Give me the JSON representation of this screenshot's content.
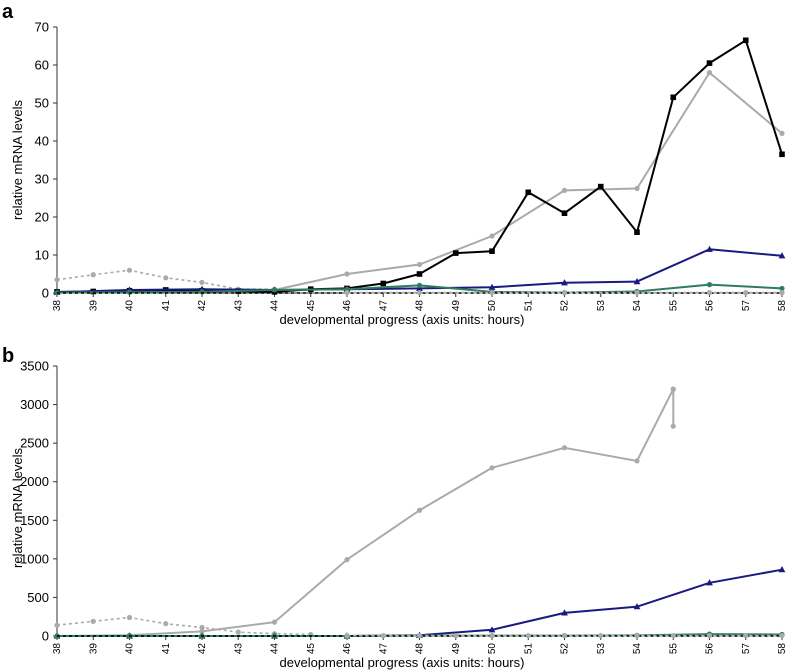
{
  "chart_data": [
    {
      "panel": "a",
      "type": "line",
      "xlabel": "developmental progress (axis units: hours)",
      "ylabel": "relative mRNA levels",
      "ylim": [
        0,
        70
      ],
      "yticks": [
        0,
        10,
        20,
        30,
        40,
        50,
        60,
        70
      ],
      "xticks": [
        38,
        39,
        40,
        41,
        42,
        43,
        44,
        45,
        46,
        47,
        48,
        49,
        50,
        51,
        52,
        53,
        54,
        55,
        56,
        57,
        58
      ],
      "grid": false,
      "series": [
        {
          "color": "#aaaaaa",
          "dash": true,
          "marker": "circle",
          "x": [
            38,
            39,
            40,
            41,
            42,
            43,
            44
          ],
          "y": [
            3.5,
            4.8,
            6.0,
            4.0,
            2.8,
            1.0,
            1.0
          ]
        },
        {
          "color": "#aaaaaa",
          "dash": false,
          "marker": "circle",
          "x": [
            38,
            40,
            42,
            44,
            46,
            48,
            50,
            52,
            54,
            56,
            58
          ],
          "y": [
            0.2,
            0.3,
            0.5,
            0.8,
            5.0,
            7.5,
            15.0,
            27.0,
            27.5,
            58.0,
            42.0
          ]
        },
        {
          "color": "#000000",
          "dash": false,
          "marker": "square",
          "x": [
            38,
            39,
            40,
            41,
            42,
            43,
            44,
            45,
            46,
            47,
            48,
            49,
            50,
            51,
            52,
            53,
            54,
            55,
            56,
            57,
            58
          ],
          "y": [
            0.3,
            0.4,
            0.6,
            0.8,
            0.6,
            0.5,
            0.3,
            1.0,
            1.2,
            2.5,
            5.0,
            10.5,
            11.0,
            26.5,
            21.0,
            28.0,
            16.0,
            51.5,
            60.5,
            66.5,
            36.5
          ]
        },
        {
          "color": "#1a1a80",
          "dash": false,
          "marker": "triangle",
          "x": [
            38,
            40,
            42,
            44,
            46,
            48,
            50,
            52,
            54,
            56,
            58
          ],
          "y": [
            0.2,
            0.8,
            1.0,
            0.8,
            1.0,
            1.2,
            1.5,
            2.7,
            3.0,
            11.5,
            9.8
          ]
        },
        {
          "color": "#2e7d5b",
          "dash": false,
          "marker": "circle",
          "x": [
            38,
            40,
            42,
            44,
            46,
            48,
            50,
            52,
            54,
            56,
            58
          ],
          "y": [
            0.1,
            0.2,
            0.3,
            0.8,
            1.0,
            2.0,
            0.3,
            0.1,
            0.4,
            2.2,
            1.2
          ]
        },
        {
          "color": "#000000",
          "dash": true,
          "marker": "none",
          "x": [
            38,
            58
          ],
          "y": [
            0,
            0
          ]
        },
        {
          "color": "#aaaaaa",
          "dash": true,
          "marker": "circle",
          "x": [
            46,
            48,
            50,
            52,
            54,
            56,
            57,
            58
          ],
          "y": [
            0.1,
            0.1,
            0.1,
            0.1,
            0.1,
            0.1,
            0.1,
            0.1
          ]
        }
      ]
    },
    {
      "panel": "b",
      "type": "line",
      "xlabel": "developmental progress (axis units: hours)",
      "ylabel": "relative mRNA levels",
      "ylim": [
        0,
        3500
      ],
      "yticks": [
        0,
        500,
        1000,
        1500,
        2000,
        2500,
        3000,
        3500
      ],
      "xticks": [
        38,
        39,
        40,
        41,
        42,
        43,
        44,
        45,
        46,
        47,
        48,
        49,
        50,
        51,
        52,
        53,
        54,
        55,
        56,
        57,
        58
      ],
      "grid": false,
      "series": [
        {
          "color": "#aaaaaa",
          "dash": true,
          "marker": "circle",
          "x": [
            38,
            39,
            40,
            41,
            42,
            43,
            44,
            45
          ],
          "y": [
            140,
            190,
            240,
            160,
            110,
            50,
            30,
            20
          ]
        },
        {
          "color": "#aaaaaa",
          "dash": false,
          "marker": "circle",
          "x": [
            38,
            40,
            42,
            44,
            46,
            48,
            50,
            52,
            54,
            55
          ],
          "y": [
            0,
            10,
            60,
            180,
            990,
            1630,
            2180,
            2440,
            2270,
            3200
          ]
        },
        {
          "color": "#aaaaaa",
          "dash": false,
          "marker": "circle",
          "x": [
            55,
            55
          ],
          "y": [
            3200,
            2720
          ]
        },
        {
          "color": "#1a1a80",
          "dash": false,
          "marker": "triangle",
          "x": [
            38,
            40,
            42,
            44,
            46,
            48,
            50,
            52,
            54,
            56,
            58
          ],
          "y": [
            0,
            0,
            0,
            0,
            0,
            10,
            80,
            300,
            380,
            690,
            860
          ]
        },
        {
          "color": "#2e7d5b",
          "dash": false,
          "marker": "circle",
          "x": [
            38,
            40,
            42,
            44,
            46,
            48,
            50,
            52,
            54,
            56,
            58
          ],
          "y": [
            0,
            0,
            0,
            0,
            0,
            5,
            5,
            5,
            8,
            25,
            20
          ]
        },
        {
          "color": "#000000",
          "dash": true,
          "marker": "none",
          "x": [
            38,
            58
          ],
          "y": [
            0,
            0
          ]
        },
        {
          "color": "#aaaaaa",
          "dash": true,
          "marker": "circle",
          "x": [
            46,
            47,
            48,
            49,
            50,
            51,
            52,
            53,
            54,
            55,
            56,
            57,
            58
          ],
          "y": [
            5,
            5,
            5,
            5,
            5,
            5,
            5,
            5,
            5,
            5,
            5,
            5,
            5
          ]
        }
      ]
    }
  ]
}
